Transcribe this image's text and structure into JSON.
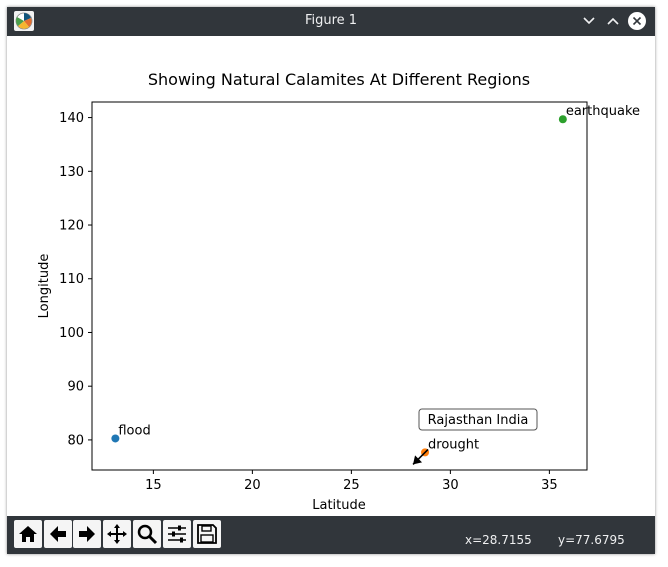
{
  "window": {
    "title": "Figure 1"
  },
  "toolbar": {
    "tools": [
      "home-icon",
      "back-arrow-icon",
      "forward-arrow-icon",
      "pan-icon",
      "zoom-icon",
      "configure-subplots-icon",
      "save-icon"
    ],
    "coord_x": "x=28.7155",
    "coord_y": "y=77.6795"
  },
  "chart_data": {
    "type": "scatter",
    "title": "Showing Natural Calamites At Different Regions",
    "xlabel": "Latitude",
    "ylabel": "Longitude",
    "xlim": [
      11.9,
      36.9
    ],
    "ylim": [
      74.4,
      142.9
    ],
    "xticks": [
      15,
      20,
      25,
      30,
      35
    ],
    "yticks": [
      80,
      90,
      100,
      110,
      120,
      130,
      140
    ],
    "grid": false,
    "points": [
      {
        "label": "flood",
        "x": 13.08,
        "y": 80.27,
        "color": "#1f77b4"
      },
      {
        "label": "drought",
        "x": 28.72,
        "y": 77.68,
        "color": "#ff7f0e"
      },
      {
        "label": "earthquake",
        "x": 35.68,
        "y": 139.69,
        "color": "#2ca02c"
      }
    ],
    "annotation": {
      "text": "Rajasthan India",
      "target_point": "drought"
    }
  }
}
